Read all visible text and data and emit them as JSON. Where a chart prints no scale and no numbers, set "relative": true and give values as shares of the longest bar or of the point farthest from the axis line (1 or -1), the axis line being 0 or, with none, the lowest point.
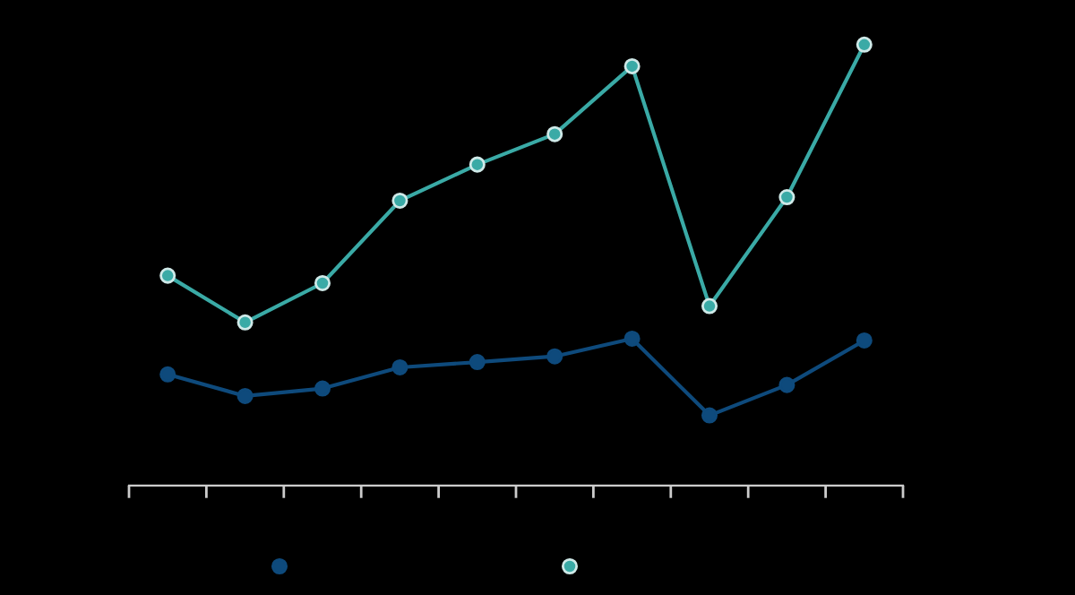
{
  "chart_data": {
    "type": "line",
    "relative": true,
    "categories": [
      null,
      null,
      null,
      null,
      null,
      null,
      null,
      null,
      null,
      null
    ],
    "series": [
      {
        "color": "#0e4a7c",
        "values": [
          0.252,
          0.203,
          0.22,
          0.268,
          0.28,
          0.293,
          0.333,
          0.159,
          0.228,
          0.329
        ]
      },
      {
        "color": "#3aaaa6",
        "values": [
          0.476,
          0.37,
          0.459,
          0.646,
          0.728,
          0.797,
          0.951,
          0.407,
          0.654,
          1.0
        ]
      }
    ],
    "marker": "circle",
    "line_style": "solid",
    "grid": false
  }
}
